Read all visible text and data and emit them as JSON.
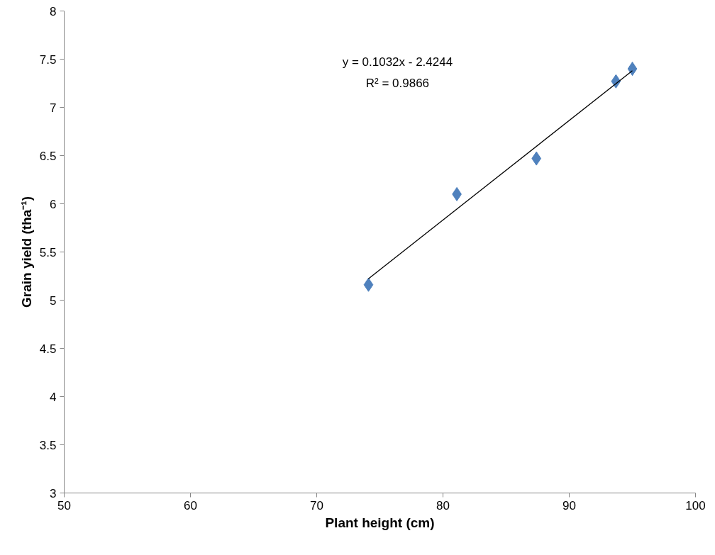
{
  "chart_data": {
    "type": "scatter",
    "xlabel": "Plant height (cm)",
    "ylabel": "Grain yield (tha⁻¹)",
    "annotations": [
      "y = 0.1032x - 2.4244",
      "R² = 0.9866"
    ],
    "series": [
      {
        "color": "#4f81bd",
        "marker": "diamond",
        "x": [
          74.1,
          81.1,
          87.4,
          93.7,
          95.0
        ],
        "values": [
          5.16,
          6.1,
          6.47,
          7.27,
          7.4
        ]
      },
      {
        "type": "line",
        "color": "#000000",
        "x": [
          74.1,
          95.0
        ],
        "values": [
          5.223,
          7.38
        ]
      }
    ],
    "xlim": [
      50,
      100
    ],
    "xticks": [
      50,
      60,
      70,
      80,
      90,
      100
    ],
    "ylim": [
      3,
      8
    ],
    "yticks": [
      3,
      3.5,
      4,
      4.5,
      5,
      5.5,
      6,
      6.5,
      7,
      7.5,
      8
    ],
    "grid": false
  }
}
